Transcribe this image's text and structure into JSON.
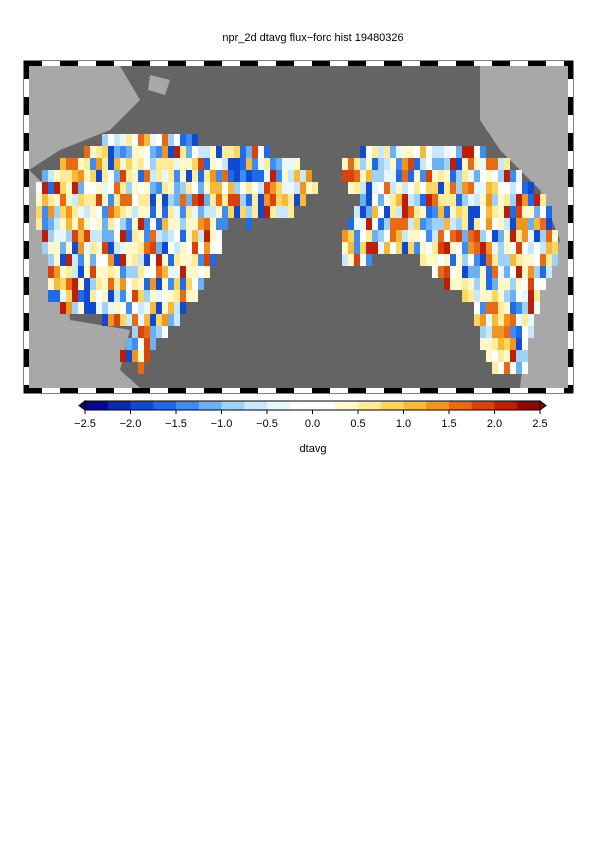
{
  "title": "npr_2d dtavg flux−forc hist 19480326",
  "colorbar": {
    "label": "dtavg",
    "ticks": [
      {
        "value": -2.5,
        "label": "−2.5"
      },
      {
        "value": -2.0,
        "label": "−2.0"
      },
      {
        "value": -1.5,
        "label": "−1.5"
      },
      {
        "value": -1.0,
        "label": "−1.0"
      },
      {
        "value": -0.5,
        "label": "−0.5"
      },
      {
        "value": 0.0,
        "label": "0.0"
      },
      0.5,
      {
        "value": 1.0,
        "label": "1.0"
      },
      1.5,
      {
        "value": 2.0,
        "label": "2.0"
      },
      2.5
    ],
    "lim": [
      -2.5,
      2.5
    ],
    "colors": [
      "#08088c",
      "#0a2aae",
      "#0f4ad0",
      "#1f6ae6",
      "#3f8cf0",
      "#6cb0f4",
      "#9ed2f8",
      "#c8e8fb",
      "#e8f6fd",
      "#ffffff",
      "#ffffff",
      "#fff8c8",
      "#ffec98",
      "#fdd660",
      "#f8b838",
      "#f29420",
      "#e86a12",
      "#d9420a",
      "#bc1e06",
      "#8c0a04"
    ]
  }
}
